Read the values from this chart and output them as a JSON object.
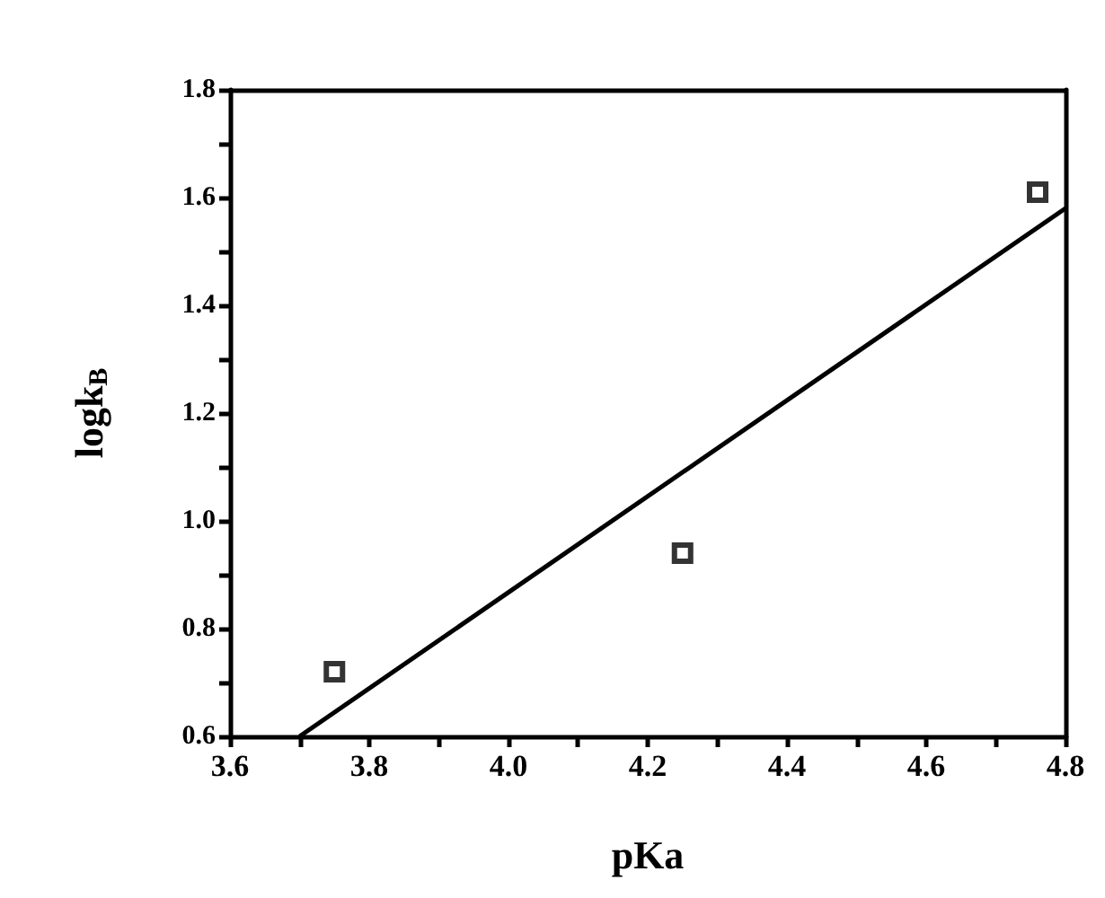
{
  "chart_data": {
    "type": "scatter",
    "xlabel": "pKa",
    "ylabel": "logk$_{B}$",
    "series": [
      {
        "color": "#000000",
        "marker": "square",
        "x": [
          3.75,
          4.25,
          4.76
        ],
        "values": [
          0.72,
          0.94,
          1.61
        ]
      },
      {
        "type": "line",
        "color": "#000000",
        "marker": "none",
        "line_style": "solid",
        "x": [
          3.7,
          4.8
        ],
        "values": [
          0.6,
          1.58
        ]
      }
    ],
    "xlim": [
      3.6,
      4.8
    ],
    "xticks": [
      3.6,
      {
        "value": 3.7,
        "label": null
      },
      3.8,
      {
        "value": 3.9,
        "label": null
      },
      {
        "value": 4.0,
        "label": "4.0"
      },
      {
        "value": 4.1,
        "label": null
      },
      4.2,
      {
        "value": 4.3,
        "label": null
      },
      4.4,
      {
        "value": 4.5,
        "label": null
      },
      4.6,
      {
        "value": 4.7,
        "label": null
      },
      4.8
    ],
    "ylim": [
      0.6,
      1.8
    ],
    "yticks": [
      0.6,
      {
        "value": 0.7,
        "label": null
      },
      0.8,
      {
        "value": 0.9,
        "label": null
      },
      {
        "value": 1.0,
        "label": "1.0"
      },
      {
        "value": 1.1,
        "label": null
      },
      1.2,
      {
        "value": 1.3,
        "label": null
      },
      1.4,
      {
        "value": 1.5,
        "label": null
      },
      1.6,
      {
        "value": 1.7,
        "label": null
      },
      1.8
    ],
    "grid": false
  }
}
